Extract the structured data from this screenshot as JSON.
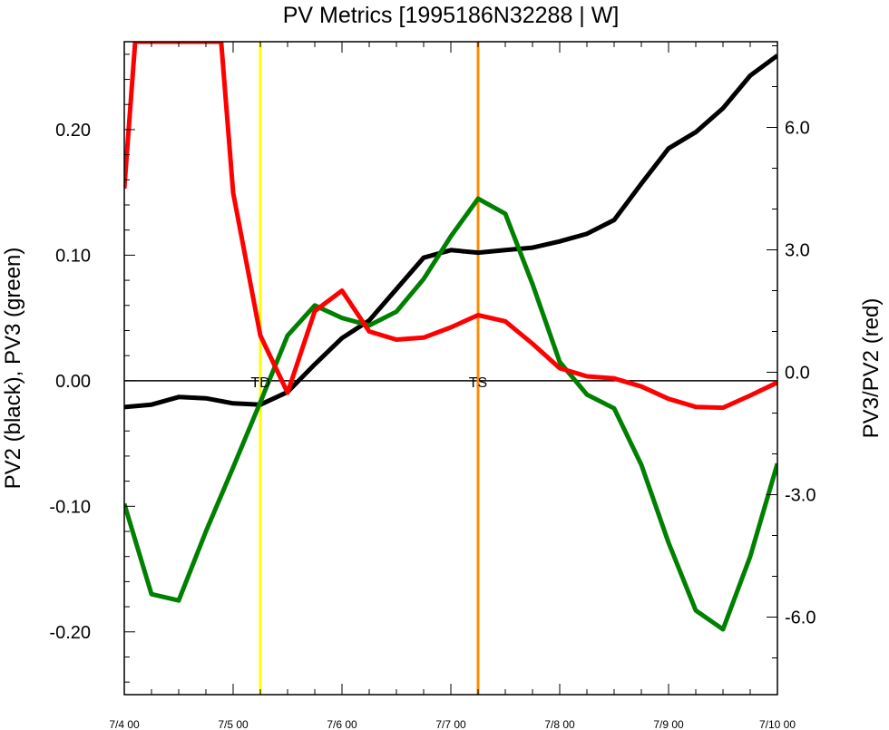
{
  "chart_data": {
    "type": "line",
    "title": "PV Metrics [1995186N32288 | W]",
    "xlabel": "",
    "ylabel_left": "PV2 (black), PV3 (green)",
    "ylabel_right": "PV3/PV2 (red)",
    "x": [
      0,
      0.25,
      0.5,
      0.75,
      1,
      1.25,
      1.5,
      1.75,
      2,
      2.25,
      2.5,
      2.75,
      3,
      3.25,
      3.5,
      3.75,
      4,
      4.25,
      4.5,
      4.75,
      5,
      5.25,
      5.5,
      5.75,
      6
    ],
    "xlim": [
      0,
      6
    ],
    "x_ticks": [
      0,
      1,
      2,
      3,
      4,
      5,
      6
    ],
    "x_tick_labels": [
      "7/4 00",
      "7/5 00",
      "7/6 00",
      "7/7 00",
      "7/8 00",
      "7/9 00",
      "7/10 00"
    ],
    "ylim_left": [
      -0.25,
      0.27
    ],
    "y_ticks_left": [
      0.2,
      0.1,
      0.0,
      -0.1,
      -0.2
    ],
    "y_tick_labels_left": [
      "0.20",
      "0.10",
      "0.00",
      "-0.10",
      "-0.20"
    ],
    "ylim_right": [
      -7.9,
      8.1
    ],
    "y_ticks_right": [
      6,
      3,
      0,
      -3,
      -6
    ],
    "y_tick_labels_right": [
      "6.0",
      "3.0",
      "0.0",
      "-3.0",
      "-6.0"
    ],
    "zero_line": 0,
    "series": [
      {
        "axis": "left",
        "color": "#000000",
        "values": [
          -0.021,
          -0.019,
          -0.013,
          -0.014,
          -0.018,
          -0.019,
          -0.009,
          0.013,
          0.034,
          0.048,
          0.073,
          0.098,
          0.104,
          0.102,
          0.104,
          0.106,
          0.111,
          0.117,
          0.128,
          0.157,
          0.185,
          0.198,
          0.217,
          0.243,
          0.259
        ]
      },
      {
        "axis": "left",
        "color": "#008000",
        "values": [
          -0.098,
          -0.17,
          -0.175,
          -0.12,
          -0.069,
          -0.017,
          0.036,
          0.06,
          0.05,
          0.044,
          0.055,
          0.081,
          0.115,
          0.145,
          0.133,
          0.077,
          0.015,
          -0.011,
          -0.022,
          -0.067,
          -0.129,
          -0.183,
          -0.198,
          -0.14,
          -0.066
        ]
      },
      {
        "axis": "right",
        "color": "#ff0000",
        "points": [
          [
            0,
            4.5
          ],
          [
            0.1,
            8.1
          ],
          [
            0.89,
            8.1
          ],
          [
            1,
            4.4
          ],
          [
            1.25,
            0.9
          ],
          [
            1.5,
            -0.5
          ],
          [
            1.75,
            1.5
          ],
          [
            2,
            2.0
          ],
          [
            2.25,
            1.0
          ],
          [
            2.5,
            0.8
          ],
          [
            2.75,
            0.85
          ],
          [
            3,
            1.1
          ],
          [
            3.25,
            1.4
          ],
          [
            3.5,
            1.25
          ],
          [
            3.75,
            0.7
          ],
          [
            4,
            0.1
          ],
          [
            4.25,
            -0.1
          ],
          [
            4.5,
            -0.15
          ],
          [
            4.75,
            -0.35
          ],
          [
            5,
            -0.65
          ],
          [
            5.25,
            -0.85
          ],
          [
            5.5,
            -0.87
          ],
          [
            5.75,
            -0.57
          ],
          [
            6,
            -0.25
          ]
        ]
      }
    ],
    "vlines": [
      {
        "x": 1.25,
        "color": "#ffff00",
        "label": "TD"
      },
      {
        "x": 3.25,
        "color": "#ff8c00",
        "label": "TS"
      }
    ],
    "grid": false,
    "legend": "none"
  }
}
